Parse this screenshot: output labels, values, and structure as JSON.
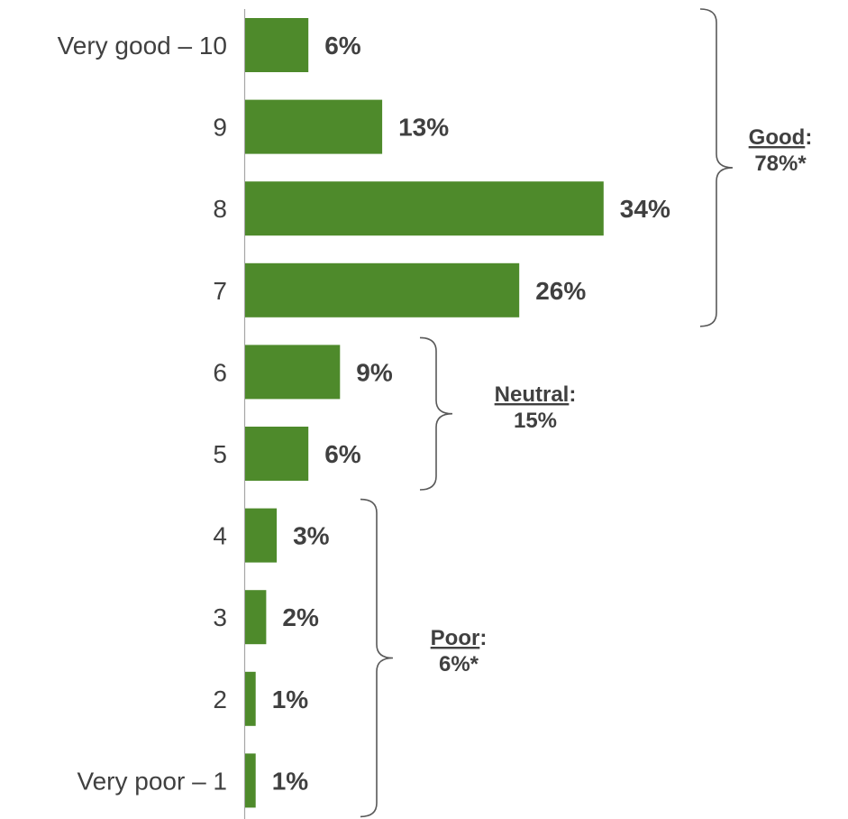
{
  "chart_data": {
    "type": "bar",
    "orientation": "horizontal",
    "categories": [
      "Very good – 10",
      "9",
      "8",
      "7",
      "6",
      "5",
      "4",
      "3",
      "2",
      "Very poor – 1"
    ],
    "values": [
      6,
      13,
      34,
      26,
      9,
      6,
      3,
      2,
      1,
      1
    ],
    "value_labels": [
      "6%",
      "13%",
      "34%",
      "26%",
      "9%",
      "6%",
      "3%",
      "2%",
      "1%",
      "1%"
    ],
    "unit": "%",
    "title": "",
    "xlabel": "",
    "ylabel": "",
    "xlim": [
      0,
      34
    ],
    "grid": false,
    "legend": "none",
    "bar_color": "#4e8a2b",
    "text_color": "#404040",
    "groups": [
      {
        "name": "Good",
        "value": "78%*",
        "from": 0,
        "to": 3
      },
      {
        "name": "Neutral",
        "value": "15%",
        "from": 4,
        "to": 5
      },
      {
        "name": "Poor",
        "value": "6%*",
        "from": 6,
        "to": 9
      }
    ]
  }
}
